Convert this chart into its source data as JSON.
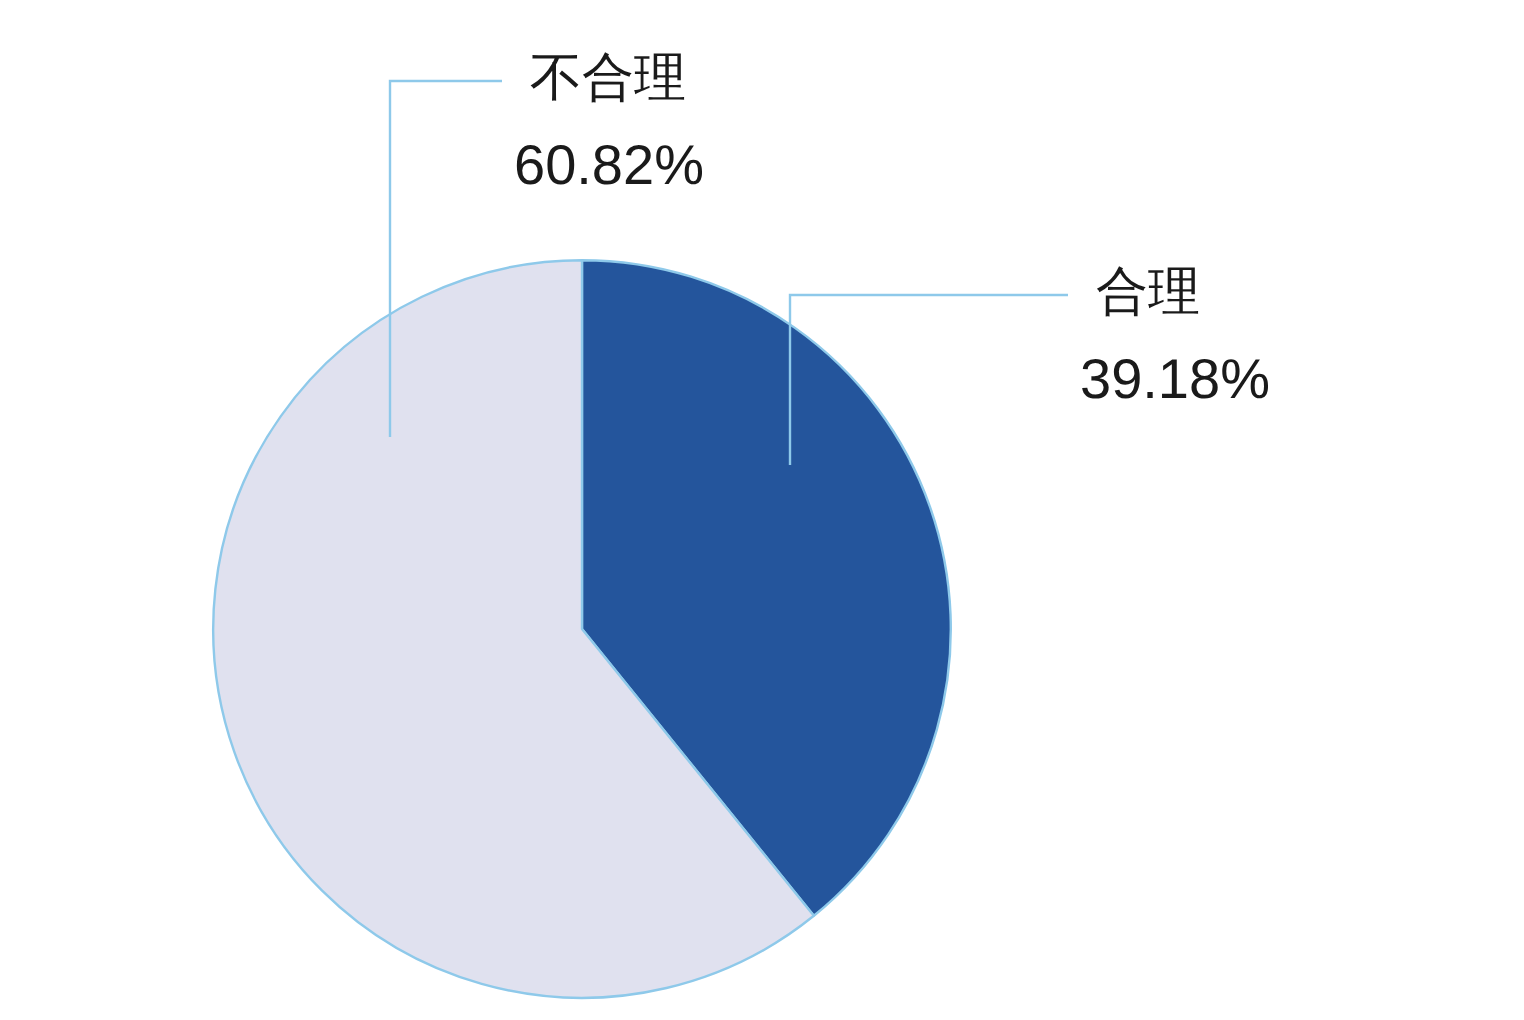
{
  "chart_data": {
    "type": "pie",
    "categories": [
      "合理",
      "不合理"
    ],
    "values": [
      39.18,
      60.82
    ],
    "colors": [
      "#24559c",
      "#e0e1ef"
    ],
    "value_labels": [
      "39.18%",
      "60.82%"
    ]
  }
}
